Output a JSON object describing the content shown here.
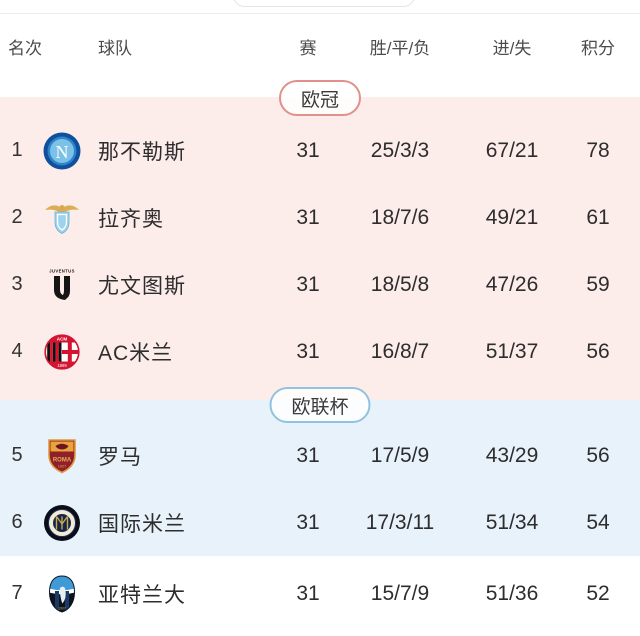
{
  "header": {
    "columns": {
      "rank": "名次",
      "team": "球队",
      "played": "赛",
      "wdl": "胜/平/负",
      "goals": "进/失",
      "points": "积分"
    }
  },
  "colors": {
    "ucl_background": "#fcecea",
    "ucl_badge_border": "#e0918a",
    "uel_background": "#e7f2fa",
    "uel_badge_border": "#90c3df",
    "text_primary": "#2d2d2d",
    "text_header": "#4b4b4b"
  },
  "sections": [
    {
      "id": "ucl",
      "badge": "欧冠",
      "rows": [
        {
          "rank": "1",
          "team": "那不勒斯",
          "logo": "napoli",
          "played": "31",
          "wdl": "25/3/3",
          "goals": "67/21",
          "points": "78"
        },
        {
          "rank": "2",
          "team": "拉齐奥",
          "logo": "lazio",
          "played": "31",
          "wdl": "18/7/6",
          "goals": "49/21",
          "points": "61"
        },
        {
          "rank": "3",
          "team": "尤文图斯",
          "logo": "juventus",
          "played": "31",
          "wdl": "18/5/8",
          "goals": "47/26",
          "points": "59"
        },
        {
          "rank": "4",
          "team": "AC米兰",
          "logo": "ac-milan",
          "played": "31",
          "wdl": "16/8/7",
          "goals": "51/37",
          "points": "56"
        }
      ]
    },
    {
      "id": "uel",
      "badge": "欧联杯",
      "rows": [
        {
          "rank": "5",
          "team": "罗马",
          "logo": "roma",
          "played": "31",
          "wdl": "17/5/9",
          "goals": "43/29",
          "points": "56"
        },
        {
          "rank": "6",
          "team": "国际米兰",
          "logo": "inter",
          "played": "31",
          "wdl": "17/3/11",
          "goals": "51/34",
          "points": "54"
        }
      ]
    },
    {
      "id": "none",
      "badge": null,
      "rows": [
        {
          "rank": "7",
          "team": "亚特兰大",
          "logo": "atalanta",
          "played": "31",
          "wdl": "15/7/9",
          "goals": "51/36",
          "points": "52"
        }
      ]
    }
  ]
}
